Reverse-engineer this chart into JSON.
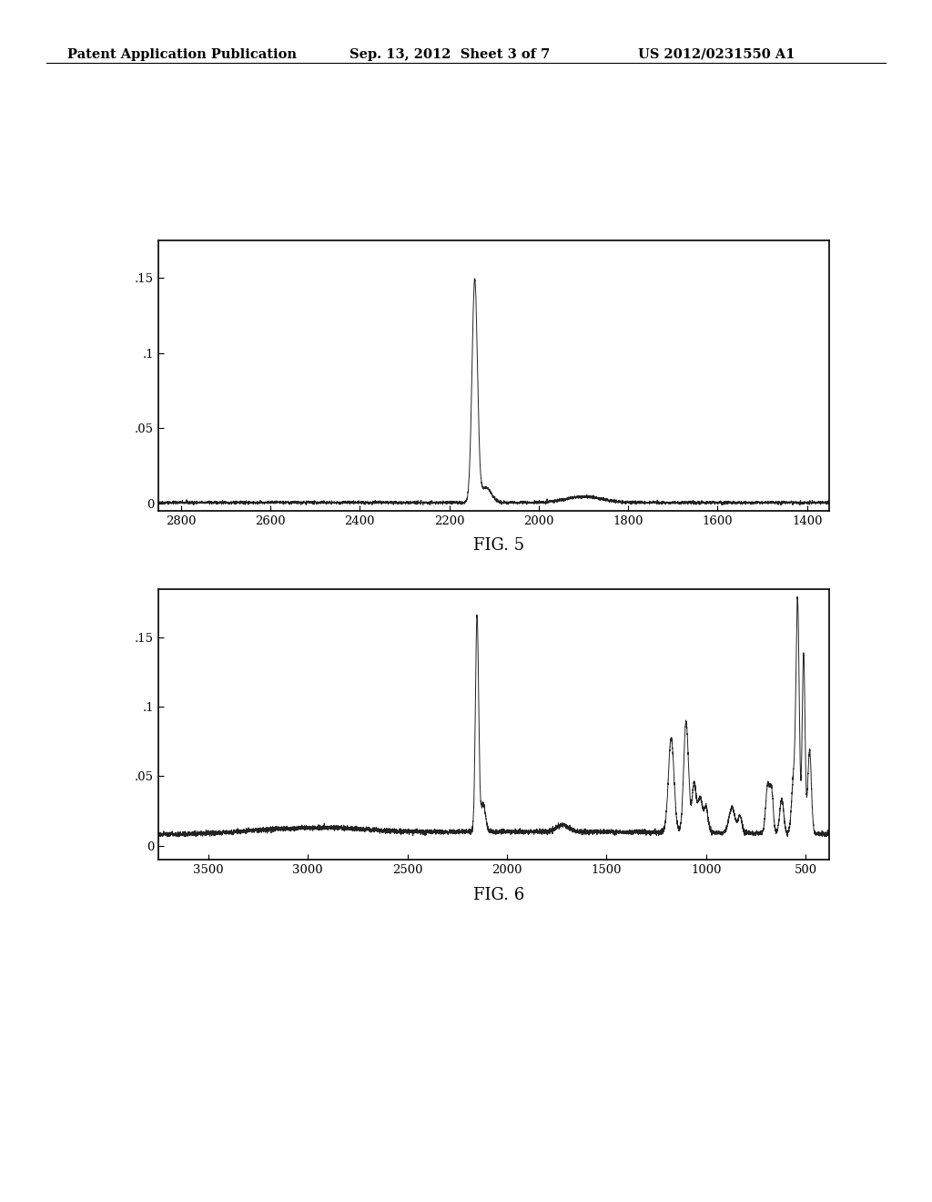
{
  "header_left": "Patent Application Publication",
  "header_center": "Sep. 13, 2012  Sheet 3 of 7",
  "header_right": "US 2012/0231550 A1",
  "fig5_label": "FIG. 5",
  "fig6_label": "FIG. 6",
  "fig5_xlim": [
    2850,
    1350
  ],
  "fig5_xticks": [
    2800,
    2600,
    2400,
    2200,
    2000,
    1800,
    1600,
    1400
  ],
  "fig5_ylim": [
    -0.005,
    0.175
  ],
  "fig5_yticks": [
    0,
    0.05,
    0.1,
    0.15
  ],
  "fig5_ytick_labels": [
    "0",
    ".05",
    ".1",
    ".15"
  ],
  "fig6_xlim": [
    3750,
    380
  ],
  "fig6_xticks": [
    3500,
    3000,
    2500,
    2000,
    1500,
    1000,
    500
  ],
  "fig6_ylim": [
    -0.01,
    0.185
  ],
  "fig6_yticks": [
    0,
    0.05,
    0.1,
    0.15
  ],
  "fig6_ytick_labels": [
    "0",
    ".05",
    ".1",
    ".15"
  ],
  "background_color": "#ffffff",
  "line_color": "#222222",
  "border_color": "#000000"
}
